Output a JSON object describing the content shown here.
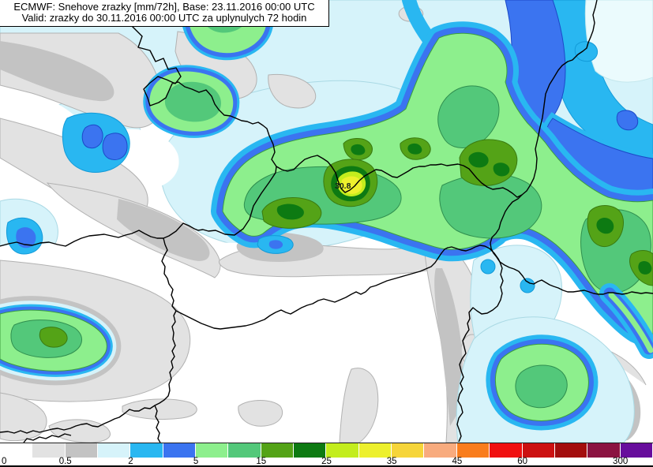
{
  "title": {
    "line1": "ECMWF: Snehove zrazky [mm/72h], Base: 23.11.2016 00:00 UTC",
    "line2": "Valid: zrazky do 30.11.2016 00:00 UTC za uplynulych 72 hodin"
  },
  "map": {
    "max_label": "30.8",
    "unit": "mm/72h"
  },
  "legend": {
    "segments": [
      {
        "color": "#ffffff"
      },
      {
        "color": "#e2e2e2"
      },
      {
        "color": "#c3c3c3"
      },
      {
        "color": "#d6f3fa"
      },
      {
        "color": "#29b7f1"
      },
      {
        "color": "#3b74f0"
      },
      {
        "color": "#8def8d"
      },
      {
        "color": "#53c87a"
      },
      {
        "color": "#54a317"
      },
      {
        "color": "#0d7a12"
      },
      {
        "color": "#c3ed1d"
      },
      {
        "color": "#edf02d"
      },
      {
        "color": "#f6d53a"
      },
      {
        "color": "#f8ab7e"
      },
      {
        "color": "#f97d1d"
      },
      {
        "color": "#f01010"
      },
      {
        "color": "#cc1111"
      },
      {
        "color": "#a30d0d"
      },
      {
        "color": "#8b1341"
      },
      {
        "color": "#670d9c"
      }
    ],
    "ticks": [
      {
        "label": "0",
        "boundary": 0
      },
      {
        "label": "0.5",
        "boundary": 2
      },
      {
        "label": "2",
        "boundary": 4
      },
      {
        "label": "5",
        "boundary": 6
      },
      {
        "label": "15",
        "boundary": 8
      },
      {
        "label": "25",
        "boundary": 10
      },
      {
        "label": "35",
        "boundary": 12
      },
      {
        "label": "45",
        "boundary": 14
      },
      {
        "label": "60",
        "boundary": 16
      },
      {
        "label": "300",
        "boundary": 19
      }
    ]
  },
  "colors": {
    "pale_cyan": "#d6f3fa",
    "cyan": "#29b7f1",
    "blue": "#3b74f0",
    "light_green": "#8def8d",
    "med_green": "#53c87a",
    "olive": "#54a317",
    "dark_green": "#0d7a12",
    "yellow_green": "#c3ed1d",
    "yellow": "#edf02d",
    "light_gray": "#e2e2e2",
    "gray": "#c3c3c3",
    "border": "#000000"
  }
}
